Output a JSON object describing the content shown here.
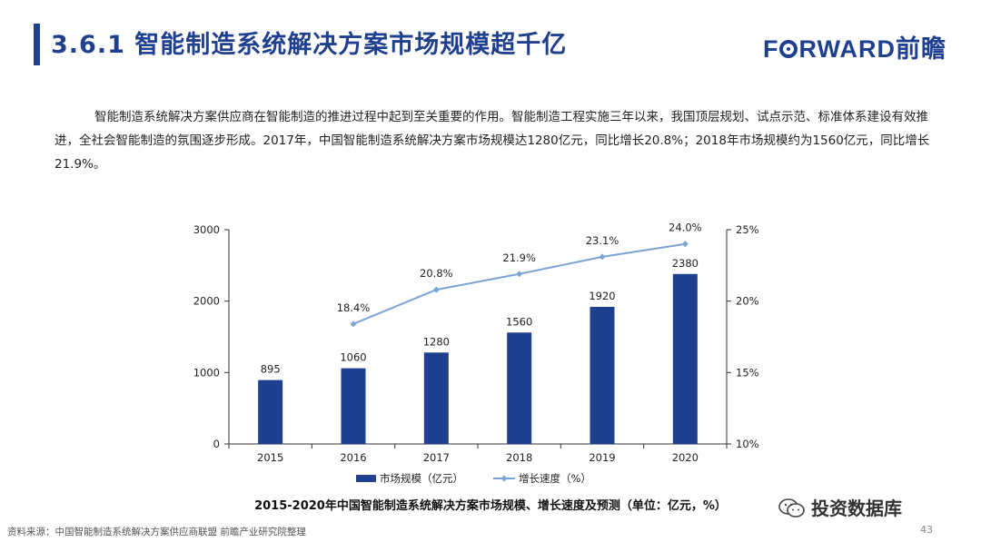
{
  "header": {
    "title": "3.6.1 智能制造系统解决方案市场规模超千亿",
    "brand_prefix": "F",
    "brand_suffix": "RWARD前瞻"
  },
  "body_text": "智能制造系统解决方案供应商在智能制造的推进过程中起到至关重要的作用。智能制造工程实施三年以来，我国顶层规划、试点示范、标准体系建设有效推进，全社会智能制造的氛围逐步形成。2017年，中国智能制造系统解决方案市场规模达1280亿元，同比增长20.8%；2018年市场规模约为1560亿元，同比增长21.9%。",
  "chart_data": {
    "type": "bar",
    "categories": [
      "2015",
      "2016",
      "2017",
      "2018",
      "2019",
      "2020"
    ],
    "series": [
      {
        "name": "市场规模（亿元）",
        "type": "bar",
        "axis": "left",
        "values": [
          895,
          1060,
          1280,
          1560,
          1920,
          2380
        ],
        "labels": [
          "895",
          "1060",
          "1280",
          "1560",
          "1920",
          "2380"
        ]
      },
      {
        "name": "增长速度（%）",
        "type": "line",
        "axis": "right",
        "values": [
          null,
          18.4,
          20.8,
          21.9,
          23.1,
          24.0
        ],
        "labels": [
          "",
          "18.4%",
          "20.8%",
          "21.9%",
          "23.1%",
          "24.0%"
        ]
      }
    ],
    "y_left": {
      "range": [
        0,
        3000
      ],
      "ticks": [
        "0",
        "1000",
        "2000",
        "3000"
      ],
      "values": [
        0,
        1000,
        2000,
        3000
      ]
    },
    "y_right": {
      "range": [
        10,
        25
      ],
      "ticks": [
        "10%",
        "15%",
        "20%",
        "25%"
      ],
      "values": [
        10,
        15,
        20,
        25
      ]
    },
    "title": "2015-2020年中国智能制造系统解决方案市场规模、增长速度及预测（单位：亿元，%）",
    "legend_position": "bottom",
    "grid": false,
    "colors": {
      "bar": "#1f3f8f",
      "line": "#7ba3d6"
    }
  },
  "footer": {
    "source": "资料来源：中国智能制造系统解决方案供应商联盟 前瞻产业研究院整理",
    "page_number": "43",
    "wechat_label": "投资数据库"
  }
}
